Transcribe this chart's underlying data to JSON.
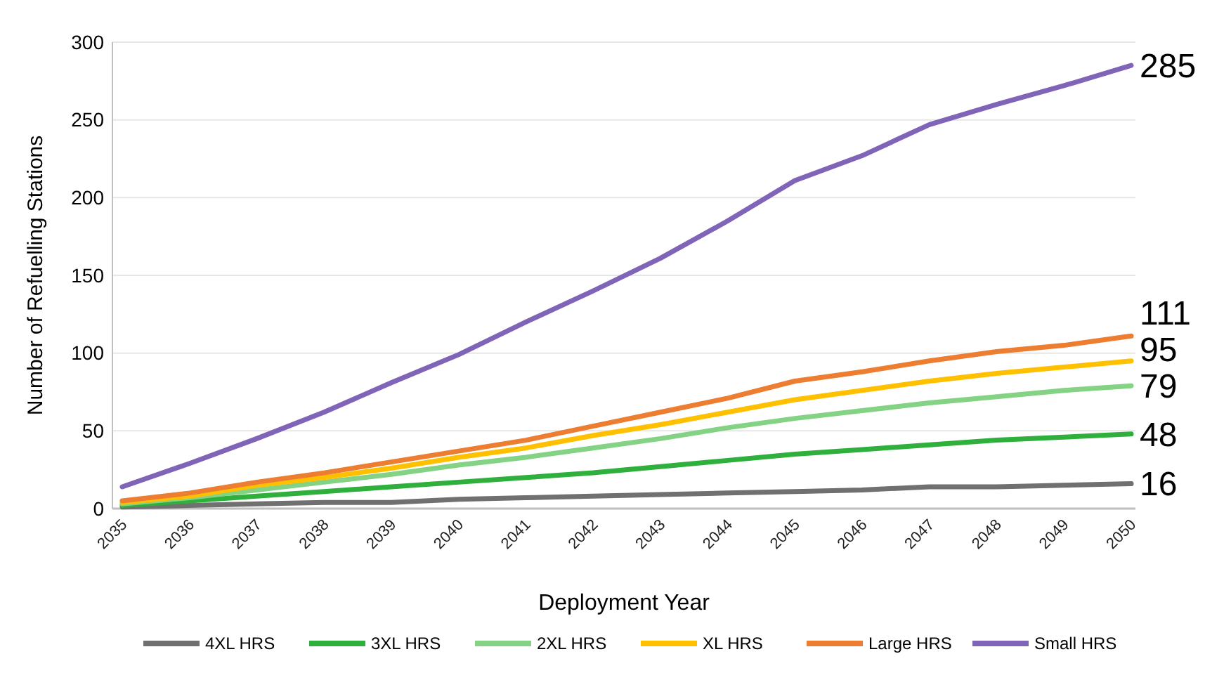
{
  "chart_data": {
    "type": "line",
    "xlabel": "Deployment Year",
    "ylabel": "Number of Refuelling Stations",
    "categories": [
      "2035",
      "2036",
      "2037",
      "2038",
      "2039",
      "2040",
      "2041",
      "2042",
      "2043",
      "2044",
      "2045",
      "2046",
      "2047",
      "2048",
      "2049",
      "2050"
    ],
    "ylim": [
      0,
      300
    ],
    "yticks": [
      0,
      50,
      100,
      150,
      200,
      250,
      300
    ],
    "grid": "y",
    "legend": "bottom",
    "marker": "none",
    "line_style": "solid",
    "series": [
      {
        "name": "4XL HRS",
        "color": "#707070",
        "values": [
          1,
          2,
          3,
          4,
          4,
          6,
          7,
          8,
          9,
          10,
          11,
          12,
          14,
          14,
          15,
          16
        ],
        "value_labels": [
          null,
          null,
          null,
          null,
          null,
          null,
          null,
          null,
          null,
          null,
          null,
          null,
          null,
          null,
          null,
          "16"
        ]
      },
      {
        "name": "3XL HRS",
        "color": "#2fb03c",
        "values": [
          2,
          5,
          8,
          11,
          14,
          17,
          20,
          23,
          27,
          31,
          35,
          38,
          41,
          44,
          46,
          48
        ],
        "value_labels": [
          null,
          null,
          null,
          null,
          null,
          null,
          null,
          null,
          null,
          null,
          null,
          null,
          null,
          null,
          null,
          "48"
        ]
      },
      {
        "name": "2XL HRS",
        "color": "#84d384",
        "values": [
          3,
          7,
          12,
          17,
          22,
          28,
          33,
          39,
          45,
          52,
          58,
          63,
          68,
          72,
          76,
          79
        ],
        "value_labels": [
          null,
          null,
          null,
          null,
          null,
          null,
          null,
          null,
          null,
          null,
          null,
          null,
          null,
          null,
          null,
          "79"
        ]
      },
      {
        "name": "XL HRS",
        "color": "#ffc000",
        "values": [
          4,
          8,
          15,
          20,
          26,
          33,
          39,
          47,
          54,
          62,
          70,
          76,
          82,
          87,
          91,
          95
        ],
        "value_labels": [
          null,
          null,
          null,
          null,
          null,
          null,
          null,
          null,
          null,
          null,
          null,
          null,
          null,
          null,
          null,
          "95"
        ]
      },
      {
        "name": "Large HRS",
        "color": "#ed7d31",
        "values": [
          5,
          10,
          17,
          23,
          30,
          37,
          44,
          53,
          62,
          71,
          82,
          88,
          95,
          101,
          105,
          111
        ],
        "value_labels": [
          null,
          null,
          null,
          null,
          null,
          null,
          null,
          null,
          null,
          null,
          null,
          null,
          null,
          null,
          null,
          "111"
        ]
      },
      {
        "name": "Small HRS",
        "color": "#8064b8",
        "values": [
          14,
          29,
          45,
          62,
          81,
          99,
          120,
          140,
          161,
          185,
          211,
          227,
          247,
          260,
          272,
          285
        ],
        "value_labels": [
          null,
          null,
          null,
          null,
          null,
          null,
          null,
          null,
          null,
          null,
          null,
          null,
          null,
          null,
          null,
          "285"
        ]
      }
    ]
  }
}
